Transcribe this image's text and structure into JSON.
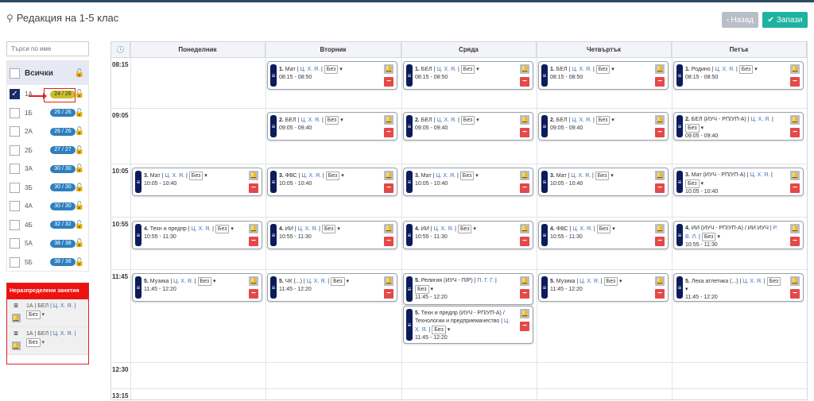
{
  "header": {
    "title": "Редакция на 1-5 клас",
    "back_label": "Назад",
    "save_label": "Запази"
  },
  "search": {
    "placeholder": "Търси по име"
  },
  "classes": {
    "all_label": "Всички",
    "items": [
      {
        "name": "1А",
        "count": "24 / 26",
        "checked": true,
        "warn": true
      },
      {
        "name": "1Б",
        "count": "26 / 26"
      },
      {
        "name": "2А",
        "count": "26 / 26"
      },
      {
        "name": "2Б",
        "count": "27 / 27"
      },
      {
        "name": "3А",
        "count": "30 / 30"
      },
      {
        "name": "3Б",
        "count": "30 / 30"
      },
      {
        "name": "4А",
        "count": "30 / 30"
      },
      {
        "name": "4Б",
        "count": "32 / 32"
      },
      {
        "name": "5А",
        "count": "38 / 38"
      },
      {
        "name": "5Б",
        "count": "38 / 38"
      }
    ]
  },
  "unassigned": {
    "title": "Неразпределени занятия",
    "items": [
      {
        "cls": "1А",
        "subject": "БЕЛ",
        "teacher": "Ц. Х. Я.",
        "select": "Без"
      },
      {
        "cls": "1А",
        "subject": "БЕЛ",
        "teacher": "Ц. Х. Я.",
        "select": "Без"
      }
    ]
  },
  "schedule": {
    "days": [
      "Понеделник",
      "Вторник",
      "Сряда",
      "Четвъртък",
      "Петък"
    ],
    "times": [
      "08:15",
      "09:05",
      "10:05",
      "10:55",
      "11:45",
      "12:30",
      "13:15"
    ],
    "lessons": [
      {
        "day": 1,
        "slot": 0,
        "n": "1.",
        "subj": "Мат",
        "teacher": "Ц. Х. Я.",
        "sel": "Без",
        "time": "08:15 - 08:50"
      },
      {
        "day": 2,
        "slot": 0,
        "n": "1.",
        "subj": "БЕЛ",
        "teacher": "Ц. Х. Я.",
        "sel": "Без",
        "time": "08:15 - 08:50"
      },
      {
        "day": 3,
        "slot": 0,
        "n": "1.",
        "subj": "БЕЛ",
        "teacher": "Ц. Х. Я.",
        "sel": "Без",
        "time": "08:15 - 08:50"
      },
      {
        "day": 4,
        "slot": 0,
        "n": "1.",
        "subj": "Родино",
        "teacher": "Ц. Х. Я.",
        "sel": "Без",
        "time": "08:15 - 08:50"
      },
      {
        "day": 1,
        "slot": 1,
        "n": "2.",
        "subj": "БЕЛ",
        "teacher": "Ц. Х. Я.",
        "sel": "Без",
        "time": "09:05 - 09:40"
      },
      {
        "day": 2,
        "slot": 1,
        "n": "2.",
        "subj": "БЕЛ",
        "teacher": "Ц. Х. Я.",
        "sel": "Без",
        "time": "09:05 - 09:40"
      },
      {
        "day": 3,
        "slot": 1,
        "n": "2.",
        "subj": "БЕЛ",
        "teacher": "Ц. Х. Я.",
        "sel": "Без",
        "time": "09:05 - 09:40"
      },
      {
        "day": 4,
        "slot": 1,
        "n": "2.",
        "subj": "БЕЛ (ИУЧ - РП/УП-А)",
        "teacher": "Ц. Х. Я.",
        "sel": "Без",
        "time": "09:05 - 09:40"
      },
      {
        "day": 0,
        "slot": 2,
        "n": "3.",
        "subj": "Мат",
        "teacher": "Ц. Х. Я.",
        "sel": "Без",
        "time": "10:05 - 10:40"
      },
      {
        "day": 1,
        "slot": 2,
        "n": "3.",
        "subj": "ФВС",
        "teacher": "Ц. Х. Я.",
        "sel": "Без",
        "time": "10:05 - 10:40"
      },
      {
        "day": 2,
        "slot": 2,
        "n": "3.",
        "subj": "Мат",
        "teacher": "Ц. Х. Я.",
        "sel": "Без",
        "time": "10:05 - 10:40"
      },
      {
        "day": 3,
        "slot": 2,
        "n": "3.",
        "subj": "Мат",
        "teacher": "Ц. Х. Я.",
        "sel": "Без",
        "time": "10:05 - 10:40"
      },
      {
        "day": 4,
        "slot": 2,
        "n": "3.",
        "subj": "Мат (ИУЧ - РП/УП-А)",
        "teacher": "Ц. Х. Я.",
        "sel": "Без",
        "time": "10:05 - 10:40"
      },
      {
        "day": 0,
        "slot": 3,
        "n": "4.",
        "subj": "Техн и предпр",
        "teacher": "Ц. Х. Я.",
        "sel": "Без",
        "time": "10:55 - 11:30"
      },
      {
        "day": 1,
        "slot": 3,
        "n": "4.",
        "subj": "ИИ",
        "teacher": "Ц. Х. Я.",
        "sel": "Без",
        "time": "10:55 - 11:30"
      },
      {
        "day": 2,
        "slot": 3,
        "n": "4.",
        "subj": "ИИ",
        "teacher": "Ц. Х. Я.",
        "sel": "Без",
        "time": "10:55 - 11:30"
      },
      {
        "day": 3,
        "slot": 3,
        "n": "4.",
        "subj": "ФВС",
        "teacher": "Ц. Х. Я.",
        "sel": "Без",
        "time": "10:55 - 11:30"
      },
      {
        "day": 4,
        "slot": 3,
        "n": "4.",
        "subj": "ИИ (ИУЧ - РП/УП-А) / ИИ ИУЧ",
        "teacher": "Р. В. Л.",
        "sel": "Без",
        "time": "10:55 - 11:30"
      },
      {
        "day": 0,
        "slot": 4,
        "n": "5.",
        "subj": "Музика",
        "teacher": "Ц. Х. Я.",
        "sel": "Без",
        "time": "11:45 - 12:20"
      },
      {
        "day": 1,
        "slot": 4,
        "n": "5.",
        "subj": "ЧК (...)",
        "teacher": "Ц. Х. Я.",
        "sel": "Без",
        "time": "11:45 - 12:20"
      },
      {
        "day": 2,
        "slot": 4,
        "n": "5.",
        "subj": "Религия (ИУЧ - П/Р)",
        "teacher": "П. Г. Г.",
        "sel": "Без",
        "time": "11:45 - 12:20"
      },
      {
        "day": 2,
        "slot": 4,
        "sub": 1,
        "n": "5.",
        "subj": "Техн и предпр (ИУЧ - РП/УП-А) / Технологии и предприемачество",
        "teacher": "Ц. Х. Я.",
        "sel": "Без",
        "time": "11:45 - 12:20"
      },
      {
        "day": 3,
        "slot": 4,
        "n": "5.",
        "subj": "Музика",
        "teacher": "Ц. Х. Я.",
        "sel": "Без",
        "time": "11:45 - 12:20"
      },
      {
        "day": 4,
        "slot": 4,
        "n": "5.",
        "subj": "Лека атлетика (...)",
        "teacher": "Ц. Х. Я.",
        "sel": "Без",
        "time": "11:45 - 12:20"
      }
    ]
  }
}
